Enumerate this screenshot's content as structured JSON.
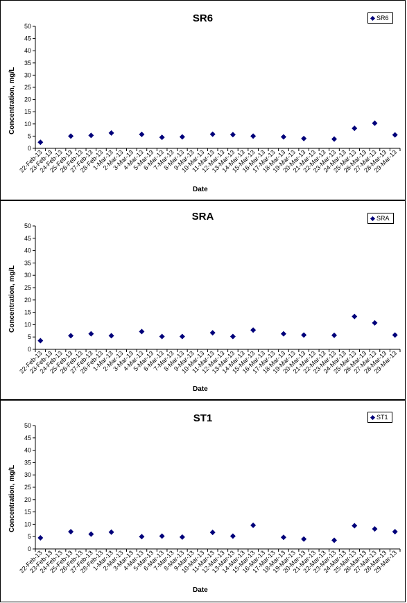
{
  "chart_data": [
    {
      "type": "scatter",
      "title": "SR6",
      "legend": "SR6",
      "legend_position": "top-right",
      "xlabel": "Date",
      "ylabel": "Concentration, mg/L",
      "ylim": [
        0,
        50
      ],
      "yticks": [
        0,
        5,
        10,
        15,
        20,
        25,
        30,
        35,
        40,
        45,
        50
      ],
      "categories": [
        "22-Feb-13",
        "23-Feb-13",
        "24-Feb-13",
        "25-Feb-13",
        "26-Feb-13",
        "27-Feb-13",
        "28-Feb-13",
        "1-Mar-13",
        "2-Mar-13",
        "3-Mar-13",
        "4-Mar-13",
        "5-Mar-13",
        "6-Mar-13",
        "7-Mar-13",
        "8-Mar-13",
        "9-Mar-13",
        "10-Mar-13",
        "11-Mar-13",
        "12-Mar-13",
        "13-Mar-13",
        "14-Mar-13",
        "15-Mar-13",
        "16-Mar-13",
        "17-Mar-13",
        "18-Mar-13",
        "19-Mar-13",
        "20-Mar-13",
        "21-Mar-13",
        "22-Mar-13",
        "23-Mar-13",
        "24-Mar-13",
        "25-Mar-13",
        "26-Mar-13",
        "27-Mar-13",
        "28-Mar-13",
        "29-Mar-13"
      ],
      "x": [
        "22-Feb-13",
        "25-Feb-13",
        "27-Feb-13",
        "1-Mar-13",
        "4-Mar-13",
        "6-Mar-13",
        "8-Mar-13",
        "11-Mar-13",
        "13-Mar-13",
        "15-Mar-13",
        "18-Mar-13",
        "20-Mar-13",
        "23-Mar-13",
        "25-Mar-13",
        "27-Mar-13",
        "29-Mar-13"
      ],
      "y": [
        2.5,
        5,
        5.3,
        6.3,
        5.7,
        4.5,
        4.7,
        5.8,
        5.6,
        5,
        4.7,
        4,
        3.8,
        8.2,
        10.3,
        5.5
      ]
    },
    {
      "type": "scatter",
      "title": "SRA",
      "legend": "SRA",
      "legend_position": "top-right",
      "xlabel": "Date",
      "ylabel": "Concentration, mg/L",
      "ylim": [
        0,
        50
      ],
      "yticks": [
        0,
        5,
        10,
        15,
        20,
        25,
        30,
        35,
        40,
        45,
        50
      ],
      "categories": [
        "22-Feb-13",
        "23-Feb-13",
        "24-Feb-13",
        "25-Feb-13",
        "26-Feb-13",
        "27-Feb-13",
        "28-Feb-13",
        "1-Mar-13",
        "2-Mar-13",
        "3-Mar-13",
        "4-Mar-13",
        "5-Mar-13",
        "6-Mar-13",
        "7-Mar-13",
        "8-Mar-13",
        "9-Mar-13",
        "10-Mar-13",
        "11-Mar-13",
        "12-Mar-13",
        "13-Mar-13",
        "14-Mar-13",
        "15-Mar-13",
        "16-Mar-13",
        "17-Mar-13",
        "18-Mar-13",
        "19-Mar-13",
        "20-Mar-13",
        "21-Mar-13",
        "22-Mar-13",
        "23-Mar-13",
        "24-Mar-13",
        "25-Mar-13",
        "26-Mar-13",
        "27-Mar-13",
        "28-Mar-13",
        "29-Mar-13"
      ],
      "x": [
        "22-Feb-13",
        "25-Feb-13",
        "27-Feb-13",
        "1-Mar-13",
        "4-Mar-13",
        "6-Mar-13",
        "8-Mar-13",
        "11-Mar-13",
        "13-Mar-13",
        "15-Mar-13",
        "18-Mar-13",
        "20-Mar-13",
        "23-Mar-13",
        "25-Mar-13",
        "27-Mar-13",
        "29-Mar-13"
      ],
      "y": [
        3.5,
        5.5,
        6.3,
        5.5,
        7.2,
        5.2,
        5.2,
        6.7,
        5.2,
        7.8,
        6.3,
        5.8,
        5.7,
        13.3,
        10.7,
        5.8
      ]
    },
    {
      "type": "scatter",
      "title": "ST1",
      "legend": "ST1",
      "legend_position": "top-right",
      "xlabel": "Date",
      "ylabel": "Concentration, mg/L",
      "ylim": [
        0,
        50
      ],
      "yticks": [
        0,
        5,
        10,
        15,
        20,
        25,
        30,
        35,
        40,
        45,
        50
      ],
      "categories": [
        "22-Feb-13",
        "23-Feb-13",
        "24-Feb-13",
        "25-Feb-13",
        "26-Feb-13",
        "27-Feb-13",
        "28-Feb-13",
        "1-Mar-13",
        "2-Mar-13",
        "3-Mar-13",
        "4-Mar-13",
        "5-Mar-13",
        "6-Mar-13",
        "7-Mar-13",
        "8-Mar-13",
        "9-Mar-13",
        "10-Mar-13",
        "11-Mar-13",
        "12-Mar-13",
        "13-Mar-13",
        "14-Mar-13",
        "15-Mar-13",
        "16-Mar-13",
        "17-Mar-13",
        "18-Mar-13",
        "19-Mar-13",
        "20-Mar-13",
        "21-Mar-13",
        "22-Mar-13",
        "23-Mar-13",
        "24-Mar-13",
        "25-Mar-13",
        "26-Mar-13",
        "27-Mar-13",
        "28-Mar-13",
        "29-Mar-13"
      ],
      "x": [
        "22-Feb-13",
        "25-Feb-13",
        "27-Feb-13",
        "1-Mar-13",
        "4-Mar-13",
        "6-Mar-13",
        "8-Mar-13",
        "11-Mar-13",
        "13-Mar-13",
        "15-Mar-13",
        "18-Mar-13",
        "20-Mar-13",
        "23-Mar-13",
        "25-Mar-13",
        "27-Mar-13",
        "29-Mar-13"
      ],
      "y": [
        4.5,
        7,
        6,
        6.8,
        5,
        5.2,
        4.8,
        6.7,
        5.2,
        9.6,
        4.7,
        4,
        3.5,
        9.4,
        8.1,
        7
      ]
    }
  ],
  "colors": {
    "marker": "#00007a",
    "axis": "#000000",
    "background": "#ffffff"
  }
}
